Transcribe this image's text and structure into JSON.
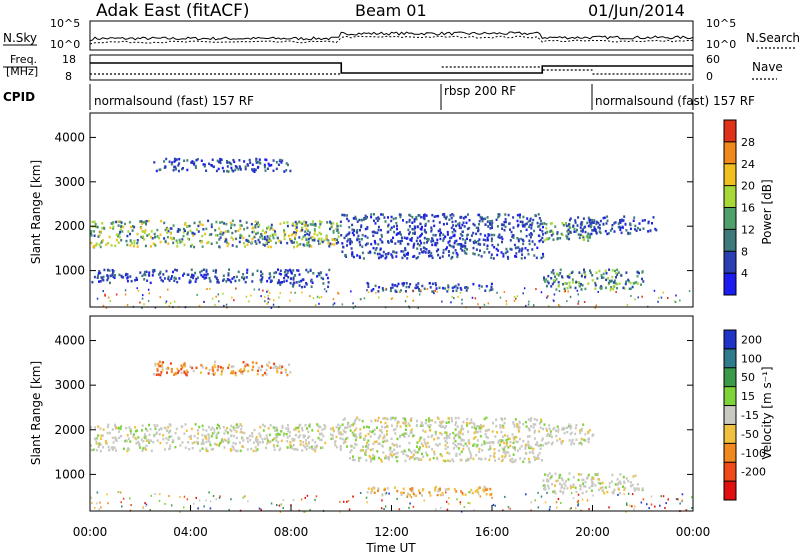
{
  "header": {
    "title": "Adak East (fitACF)",
    "beam": "Beam 01",
    "date": "01/Jun/2014"
  },
  "top_panels": {
    "nsky_label": "N.Sky",
    "nsearch_label": "N.Search",
    "noise_ticks": [
      "10^5",
      "10^0"
    ],
    "freq_label": "Freq.",
    "freq_unit": "[MHz]",
    "freq_ticks": [
      "18",
      "8"
    ],
    "nave_label": "Nave",
    "nave_ticks": [
      "60",
      "0"
    ],
    "cpid_label": "CPID",
    "cpid_segments": [
      {
        "label": "normalsound (fast) 157 RF",
        "start_h": 0,
        "end_h": 14
      },
      {
        "label": "rbsp 200 RF",
        "start_h": 14,
        "end_h": 20
      },
      {
        "label": "normalsound (fast) 157 RF",
        "start_h": 20,
        "end_h": 24
      }
    ]
  },
  "axes": {
    "ylabel": "Slant Range [km]",
    "xlabel": "Time UT",
    "yticks": [
      1000,
      2000,
      3000,
      4000
    ],
    "ylim": [
      180,
      4550
    ],
    "xticks": [
      "00:00",
      "04:00",
      "08:00",
      "12:00",
      "16:00",
      "20:00",
      "00:00"
    ],
    "xlim_hours": [
      0,
      24
    ]
  },
  "power_scale": {
    "label": "Power [dB]",
    "ticks": [
      "4",
      "8",
      "12",
      "16",
      "20",
      "24",
      "28"
    ],
    "colors": [
      "#1c1cf0",
      "#2a3fb4",
      "#3f7a7a",
      "#4fa06a",
      "#a8d838",
      "#f0c020",
      "#f08a1c",
      "#e0321a"
    ]
  },
  "velocity_scale": {
    "label": "Velocity [m s⁻¹]",
    "ticks": [
      "200",
      "100",
      "50",
      "15",
      "-15",
      "-50",
      "-100",
      "-200"
    ],
    "colors": [
      "#2035c8",
      "#2f7a8c",
      "#3a9a4a",
      "#7ed23a",
      "#c9c9c4",
      "#f0c040",
      "#f08a20",
      "#f04a18",
      "#e01010"
    ]
  },
  "chart_data": [
    {
      "type": "heatmap",
      "title": "",
      "xlabel": "",
      "ylabel": "Slant Range [km]",
      "colorbar_label": "Power [dB]",
      "xlim_hours": [
        0,
        24
      ],
      "ylim_km": [
        180,
        4550
      ],
      "echo_regions": [
        {
          "t0": 0.0,
          "t1": 10.0,
          "r0": 1550,
          "r1": 2150,
          "level": "medium-high"
        },
        {
          "t0": 2.5,
          "t1": 8.0,
          "r0": 3250,
          "r1": 3550,
          "level": "low"
        },
        {
          "t0": 0.0,
          "t1": 8.0,
          "r0": 750,
          "r1": 1050,
          "level": "low"
        },
        {
          "t0": 7.5,
          "t1": 9.5,
          "r0": 650,
          "r1": 1050,
          "level": "low"
        },
        {
          "t0": 10.0,
          "t1": 18.0,
          "r0": 1300,
          "r1": 2300,
          "level": "low"
        },
        {
          "t0": 11.0,
          "t1": 16.0,
          "r0": 550,
          "r1": 750,
          "level": "low"
        },
        {
          "t0": 18.0,
          "t1": 20.0,
          "r0": 1700,
          "r1": 2150,
          "level": "medium"
        },
        {
          "t0": 18.0,
          "t1": 22.0,
          "r0": 600,
          "r1": 1050,
          "level": "medium"
        },
        {
          "t0": 19.0,
          "t1": 22.5,
          "r0": 1850,
          "r1": 2250,
          "level": "low"
        }
      ]
    },
    {
      "type": "heatmap",
      "title": "",
      "xlabel": "Time UT",
      "ylabel": "Slant Range [km]",
      "colorbar_label": "Velocity [m s⁻¹]",
      "xlim_hours": [
        0,
        24
      ],
      "ylim_km": [
        180,
        4550
      ],
      "echo_regions": [
        {
          "t0": 0.0,
          "t1": 10.0,
          "r0": 1550,
          "r1": 2150,
          "velocity": "-15 to 15"
        },
        {
          "t0": 2.5,
          "t1": 8.0,
          "r0": 3250,
          "r1": 3550,
          "velocity": "-50 to -100"
        },
        {
          "t0": 10.0,
          "t1": 18.0,
          "r0": 1300,
          "r1": 2300,
          "velocity": "-15 to 15"
        },
        {
          "t0": 11.0,
          "t1": 16.0,
          "r0": 550,
          "r1": 750,
          "velocity": "-15 to -50"
        },
        {
          "t0": 18.0,
          "t1": 22.0,
          "r0": 600,
          "r1": 1050,
          "velocity": "-15 to 15"
        },
        {
          "t0": 18.0,
          "t1": 20.0,
          "r0": 1700,
          "r1": 2150,
          "velocity": "-15 to 15"
        }
      ]
    }
  ]
}
